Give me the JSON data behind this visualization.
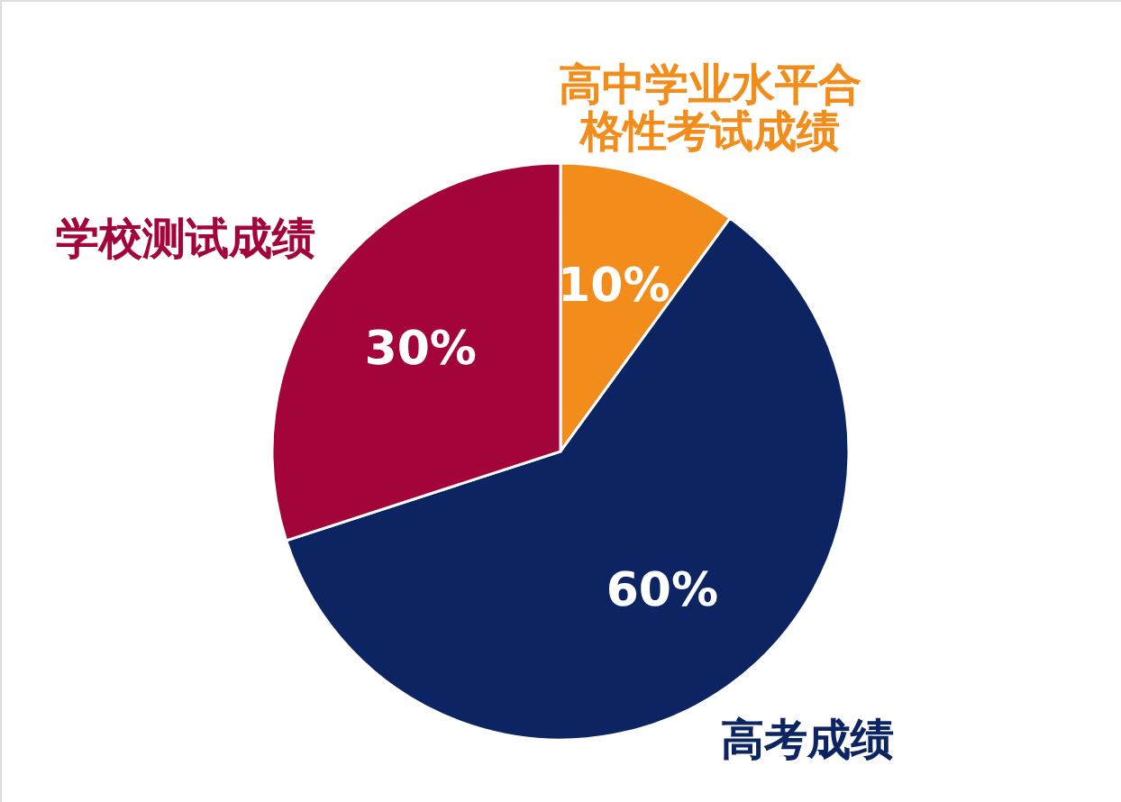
{
  "chart_data": {
    "type": "pie",
    "categories": [
      "高中学业水平合格性考试成绩",
      "高考成绩",
      "学校测试成绩"
    ],
    "values": [
      10,
      60,
      30
    ],
    "colors": [
      "#f28c1a",
      "#0c2461",
      "#a3053a"
    ],
    "value_labels": [
      "10%",
      "60%",
      "30%"
    ]
  }
}
